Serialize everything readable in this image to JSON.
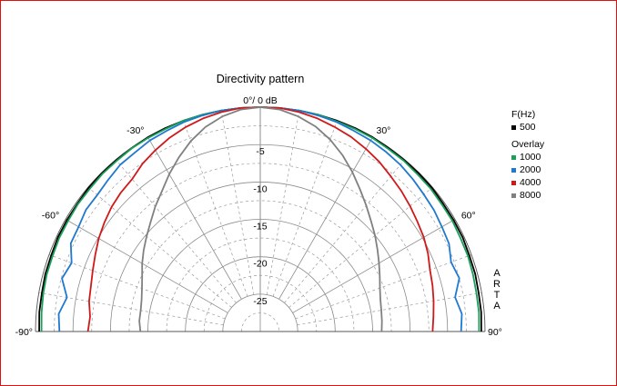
{
  "chart_data": {
    "type": "polar-line",
    "title": "Directivity pattern",
    "radial_axis": {
      "unit": "dB",
      "range": [
        -30,
        0
      ],
      "ticks": [
        {
          "value": 0,
          "label": "0°/ 0 dB"
        },
        {
          "value": -5,
          "label": "-5"
        },
        {
          "value": -10,
          "label": "-10"
        },
        {
          "value": -15,
          "label": "-15"
        },
        {
          "value": -20,
          "label": "-20"
        },
        {
          "value": -25,
          "label": "-25"
        }
      ]
    },
    "angular_axis": {
      "unit": "deg",
      "range": [
        -90,
        90
      ],
      "ticks": [
        {
          "value": -90,
          "label": "-90°"
        },
        {
          "value": -60,
          "label": "-60°"
        },
        {
          "value": -30,
          "label": "-30°"
        },
        {
          "value": 30,
          "label": "30°"
        },
        {
          "value": 60,
          "label": "60°"
        },
        {
          "value": 90,
          "label": "90°"
        }
      ]
    },
    "grid": true,
    "legend": {
      "placement": "right",
      "header": "F(Hz)",
      "overlay_header": "Overlay",
      "entries": [
        {
          "label": "500",
          "color": "#000000"
        },
        {
          "label": "1000",
          "color": "#1aa05a"
        },
        {
          "label": "2000",
          "color": "#1f78d1"
        },
        {
          "label": "4000",
          "color": "#d11818"
        },
        {
          "label": "8000",
          "color": "#808080"
        }
      ]
    },
    "angles": [
      -90,
      -85,
      -80,
      -75,
      -70,
      -65,
      -60,
      -55,
      -50,
      -45,
      -40,
      -35,
      -30,
      -25,
      -20,
      -15,
      -10,
      -5,
      0,
      5,
      10,
      15,
      20,
      25,
      30,
      35,
      40,
      45,
      50,
      55,
      60,
      65,
      70,
      75,
      80,
      85,
      90
    ],
    "series": [
      {
        "name": "500",
        "color": "#000000",
        "values": [
          -0.5,
          -0.4,
          -0.4,
          -0.3,
          -0.3,
          -0.2,
          -0.2,
          -0.2,
          -0.1,
          -0.1,
          -0.1,
          -0.1,
          0,
          0,
          0,
          0,
          0,
          0,
          0,
          0,
          0,
          0,
          0,
          0,
          0,
          -0.1,
          -0.1,
          -0.1,
          -0.1,
          -0.2,
          -0.2,
          -0.2,
          -0.3,
          -0.3,
          -0.4,
          -0.4,
          -0.5
        ]
      },
      {
        "name": "1000",
        "color": "#1aa05a",
        "values": [
          -0.8,
          -0.7,
          -0.6,
          -0.5,
          -0.5,
          -0.4,
          -0.4,
          -0.3,
          -0.3,
          -0.2,
          -0.2,
          -0.1,
          -0.1,
          -0.1,
          0,
          0,
          0,
          0,
          0,
          0,
          0,
          0,
          -0.1,
          -0.1,
          -0.1,
          -0.2,
          -0.2,
          -0.3,
          -0.3,
          -0.4,
          -0.4,
          -0.5,
          -0.5,
          -0.6,
          -0.7,
          -0.7,
          -0.8
        ]
      },
      {
        "name": "2000",
        "color": "#1f78d1",
        "values": [
          -3.2,
          -3.0,
          -3.8,
          -2.6,
          -3.2,
          -2.1,
          -2.0,
          -1.6,
          -1.6,
          -1.3,
          -0.9,
          -0.8,
          -0.5,
          -0.4,
          -0.2,
          -0.1,
          0,
          0,
          0,
          0,
          0,
          -0.1,
          -0.2,
          -0.4,
          -0.5,
          -0.7,
          -0.9,
          -1.2,
          -1.5,
          -1.7,
          -2.0,
          -2.2,
          -2.9,
          -2.5,
          -3.6,
          -3.0,
          -3.2
        ]
      },
      {
        "name": "4000",
        "color": "#d11818",
        "values": [
          -7.0,
          -7.2,
          -6.8,
          -6.6,
          -6.2,
          -5.7,
          -5.1,
          -4.6,
          -4.1,
          -3.7,
          -3.4,
          -2.6,
          -2.0,
          -1.4,
          -0.9,
          -0.5,
          -0.2,
          0,
          0,
          0,
          -0.2,
          -0.5,
          -0.9,
          -1.3,
          -1.8,
          -2.3,
          -2.9,
          -3.4,
          -3.9,
          -4.4,
          -4.8,
          -5.3,
          -5.9,
          -6.2,
          -6.5,
          -6.8,
          -7.0
        ]
      },
      {
        "name": "8000",
        "color": "#808080",
        "values": [
          -14.0,
          -13.8,
          -13.8,
          -13.6,
          -13.2,
          -12.6,
          -11.8,
          -11.0,
          -10.2,
          -9.3,
          -8.2,
          -7.1,
          -5.7,
          -4.3,
          -2.9,
          -1.7,
          -0.8,
          -0.2,
          0,
          -0.2,
          -0.8,
          -1.6,
          -2.7,
          -4.0,
          -5.4,
          -6.8,
          -8.0,
          -9.1,
          -10.0,
          -10.9,
          -11.7,
          -12.4,
          -13.0,
          -13.4,
          -13.6,
          -13.7,
          -13.8
        ]
      }
    ]
  },
  "side_label": [
    "A",
    "R",
    "T",
    "A"
  ]
}
